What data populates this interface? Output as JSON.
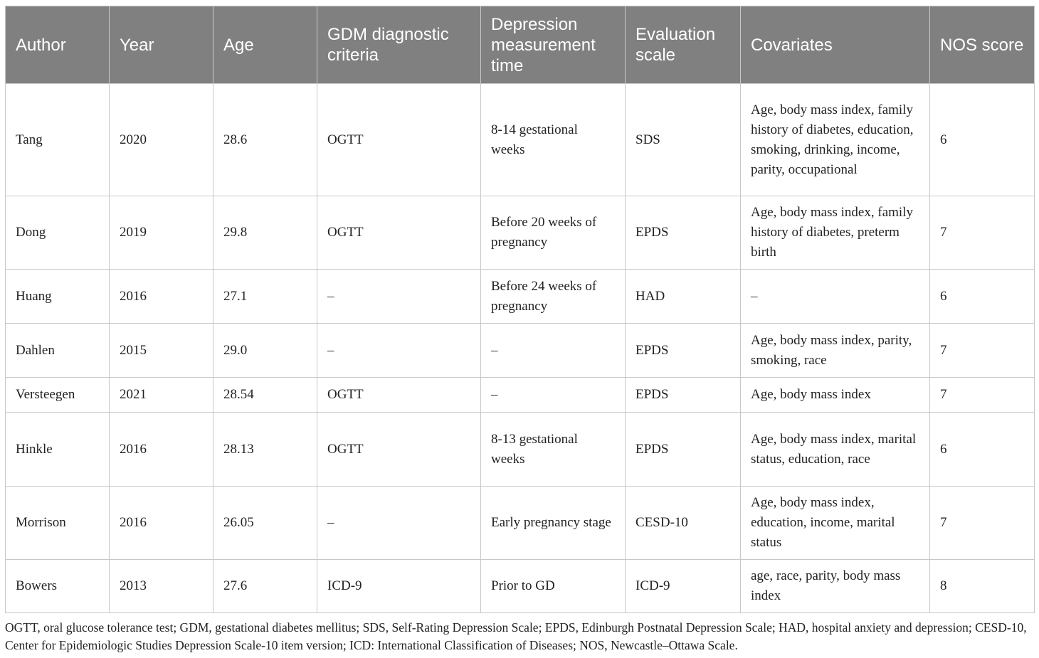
{
  "table": {
    "headers": [
      "Author",
      "Year",
      "Age",
      "GDM diagnostic criteria",
      "Depression measurement time",
      "Evaluation scale",
      "Covariates",
      "NOS score"
    ],
    "rows": [
      [
        "Tang",
        "2020",
        "28.6",
        "OGTT",
        "8-14 gestational weeks",
        "SDS",
        "Age, body mass index, family history of diabetes, education, smoking, drinking, income, parity, occupational",
        "6"
      ],
      [
        "Dong",
        "2019",
        "29.8",
        "OGTT",
        "Before 20 weeks of pregnancy",
        "EPDS",
        "Age, body mass index, family history of diabetes, preterm birth",
        "7"
      ],
      [
        "Huang",
        "2016",
        "27.1",
        "–",
        "Before 24 weeks of pregnancy",
        "HAD",
        "–",
        "6"
      ],
      [
        "Dahlen",
        "2015",
        "29.0",
        "–",
        "–",
        "EPDS",
        "Age, body mass index, parity, smoking, race",
        "7"
      ],
      [
        "Versteegen",
        "2021",
        "28.54",
        "OGTT",
        "–",
        "EPDS",
        "Age, body mass index",
        "7"
      ],
      [
        "Hinkle",
        "2016",
        "28.13",
        "OGTT",
        "8-13 gestational weeks",
        "EPDS",
        "Age, body mass index, marital status, education, race",
        "6"
      ],
      [
        "Morrison",
        "2016",
        "26.05",
        "–",
        "Early pregnancy stage",
        "CESD-10",
        "Age, body mass index, education, income, marital status",
        "7"
      ],
      [
        "Bowers",
        "2013",
        "27.6",
        "ICD-9",
        "Prior to GD",
        "ICD-9",
        "age, race, parity, body mass index",
        "8"
      ]
    ]
  },
  "footnote": "OGTT, oral glucose tolerance test; GDM, gestational diabetes mellitus; SDS, Self-Rating Depression Scale; EPDS, Edinburgh Postnatal Depression Scale; HAD, hospital anxiety and depression; CESD-10, Center for Epidemiologic Studies Depression Scale-10 item version; ICD: International Classification of Diseases; NOS, Newcastle–Ottawa Scale."
}
